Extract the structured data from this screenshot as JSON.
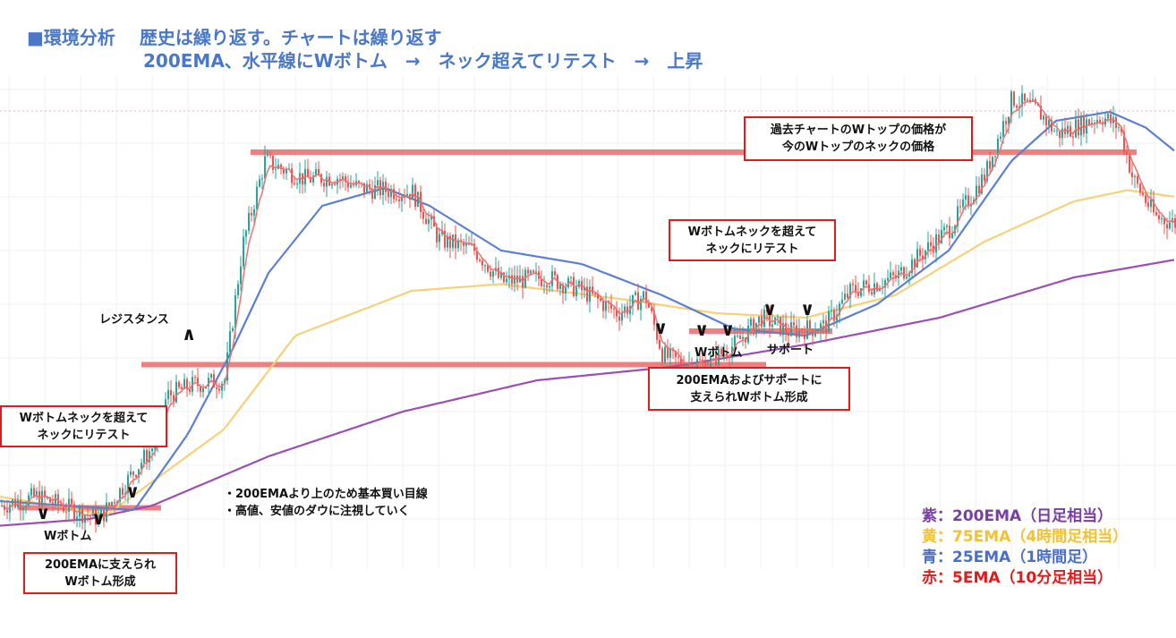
{
  "header": {
    "line1_prefix": "■環境分析",
    "line1_main": "歴史は繰り返す。チャートは繰り返す",
    "line2": "200EMA、水平線にWボトム　→　ネック超えてリテスト　→　上昇"
  },
  "annotations": {
    "left_retest": [
      "Wボトムネックを超えて",
      "ネックにリテスト"
    ],
    "left_formation": [
      "200EMAに支えられ",
      "Wボトム形成"
    ],
    "left_wbottom": "Wボトム",
    "resistance": "レジスタンス",
    "notes": [
      "・200EMAより上のため基本買い目線",
      "・高値、安値のダウに注視していく"
    ],
    "mid_retest": [
      "Wボトムネックを超えて",
      "ネックにリテスト"
    ],
    "mid_formation": [
      "200EMAおよびサポートに",
      "支えられWボトム形成"
    ],
    "mid_wbottom": "Wボトム",
    "support": "サポート",
    "top_note": [
      "過去チャートのWトップの価格が",
      "今のWトップのネックの価格"
    ]
  },
  "legend": [
    {
      "label": "紫：200EMA（日足相当）",
      "color": "#7a3da3"
    },
    {
      "label": "黄：75EMA（4時間足相当）",
      "color": "#f1c232"
    },
    {
      "label": "青：25EMA（1時間足）",
      "color": "#4a6fc7"
    },
    {
      "label": "赤：5EMA（10分足相当）",
      "color": "#e01b1b"
    }
  ],
  "chart_data": {
    "type": "candlestick",
    "up_color": "#26a69a",
    "down_color": "#ef5350",
    "anchors": [
      [
        0,
        0.26
      ],
      [
        40,
        0.3
      ],
      [
        110,
        0.2
      ],
      [
        150,
        0.42
      ],
      [
        175,
        0.55
      ],
      [
        185,
        0.75
      ],
      [
        215,
        0.8
      ],
      [
        250,
        0.82
      ],
      [
        270,
        1.42
      ],
      [
        295,
        1.8
      ],
      [
        340,
        1.72
      ],
      [
        375,
        1.73
      ],
      [
        400,
        1.68
      ],
      [
        460,
        1.66
      ],
      [
        490,
        1.45
      ],
      [
        530,
        1.4
      ],
      [
        560,
        1.26
      ],
      [
        610,
        1.28
      ],
      [
        650,
        1.22
      ],
      [
        690,
        1.12
      ],
      [
        720,
        1.2
      ],
      [
        740,
        0.93
      ],
      [
        760,
        0.9
      ],
      [
        790,
        0.9
      ],
      [
        820,
        0.98
      ],
      [
        850,
        1.1
      ],
      [
        880,
        1.04
      ],
      [
        920,
        1.06
      ],
      [
        950,
        1.22
      ],
      [
        1000,
        1.28
      ],
      [
        1060,
        1.5
      ],
      [
        1100,
        1.74
      ],
      [
        1130,
        2.08
      ],
      [
        1160,
        2.02
      ],
      [
        1180,
        1.92
      ],
      [
        1230,
        2.0
      ],
      [
        1250,
        1.95
      ],
      [
        1265,
        1.72
      ],
      [
        1290,
        1.55
      ],
      [
        1314,
        1.52
      ]
    ],
    "series": [
      {
        "name": "200EMA",
        "color": "#9b4fb3",
        "values": [
          [
            0,
            0.17
          ],
          [
            100,
            0.2
          ],
          [
            170,
            0.26
          ],
          [
            300,
            0.48
          ],
          [
            450,
            0.68
          ],
          [
            600,
            0.82
          ],
          [
            750,
            0.88
          ],
          [
            900,
            0.98
          ],
          [
            1050,
            1.1
          ],
          [
            1200,
            1.28
          ],
          [
            1314,
            1.36
          ]
        ]
      },
      {
        "name": "75EMA",
        "color": "#f5d17a",
        "values": [
          [
            0,
            0.3
          ],
          [
            120,
            0.22
          ],
          [
            250,
            0.6
          ],
          [
            330,
            1.02
          ],
          [
            460,
            1.22
          ],
          [
            560,
            1.25
          ],
          [
            700,
            1.18
          ],
          [
            800,
            1.12
          ],
          [
            900,
            1.1
          ],
          [
            1000,
            1.2
          ],
          [
            1100,
            1.44
          ],
          [
            1200,
            1.62
          ],
          [
            1260,
            1.67
          ],
          [
            1314,
            1.64
          ]
        ]
      },
      {
        "name": "25EMA",
        "color": "#5b7fd4",
        "values": [
          [
            0,
            0.28
          ],
          [
            150,
            0.24
          ],
          [
            210,
            0.58
          ],
          [
            260,
            0.96
          ],
          [
            300,
            1.3
          ],
          [
            360,
            1.6
          ],
          [
            430,
            1.68
          ],
          [
            480,
            1.6
          ],
          [
            560,
            1.4
          ],
          [
            650,
            1.34
          ],
          [
            740,
            1.2
          ],
          [
            820,
            1.05
          ],
          [
            900,
            1.02
          ],
          [
            980,
            1.16
          ],
          [
            1060,
            1.4
          ],
          [
            1130,
            1.8
          ],
          [
            1180,
            1.98
          ],
          [
            1240,
            2.02
          ],
          [
            1280,
            1.95
          ],
          [
            1314,
            1.84
          ]
        ]
      }
    ],
    "horizontal_lines": [
      {
        "y": 1.84,
        "x": [
          280,
          1270
        ],
        "color": "#f08080"
      },
      {
        "y": 0.89,
        "x": [
          158,
          856
        ],
        "color": "#f08080"
      },
      {
        "y": 1.04,
        "x": [
          770,
          930
        ],
        "color": "#f08080"
      },
      {
        "y": 0.25,
        "x": [
          20,
          180
        ],
        "color": "#f08080"
      }
    ],
    "ylim": [
      0,
      2.3
    ]
  }
}
